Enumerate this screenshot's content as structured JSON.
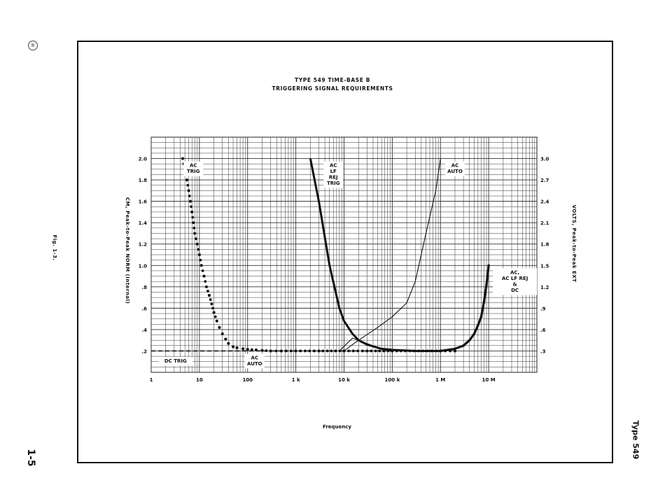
{
  "page": {
    "fig_label": "Fig. 1-3.",
    "page_number": "1-5",
    "model_label": "Type 549",
    "badge": "®"
  },
  "chart_data": {
    "type": "line",
    "title": "TYPE 549 TIME-BASE B",
    "subtitle": "TRIGGERING SIGNAL REQUIREMENTS",
    "xlabel": "Frequency",
    "ylabel_left": "CM, Peak-to-Peak NORM (Internal)",
    "ylabel_right": "VOLTS, Peak-to-Peak EXT",
    "x_scale": "log",
    "xlim": [
      1,
      100000000
    ],
    "ylim": [
      0,
      2.2
    ],
    "grid": true,
    "x_ticks": [
      {
        "value": 1,
        "label": "1"
      },
      {
        "value": 10,
        "label": "10"
      },
      {
        "value": 100,
        "label": "100"
      },
      {
        "value": 1000,
        "label": "1 k"
      },
      {
        "value": 10000,
        "label": "10 k"
      },
      {
        "value": 100000,
        "label": "100 k"
      },
      {
        "value": 1000000,
        "label": "1 M"
      },
      {
        "value": 10000000,
        "label": "10 M"
      }
    ],
    "y_ticks_left": [
      {
        "value": 0.2,
        "label": ".2"
      },
      {
        "value": 0.4,
        "label": ".4"
      },
      {
        "value": 0.6,
        "label": ".6"
      },
      {
        "value": 0.8,
        "label": ".8"
      },
      {
        "value": 1.0,
        "label": "1.0"
      },
      {
        "value": 1.2,
        "label": "1.2"
      },
      {
        "value": 1.4,
        "label": "1.4"
      },
      {
        "value": 1.6,
        "label": "1.6"
      },
      {
        "value": 1.8,
        "label": "1.8"
      },
      {
        "value": 2.0,
        "label": "2.0"
      }
    ],
    "y_ticks_right": [
      {
        "value": 0.2,
        "label": ".3"
      },
      {
        "value": 0.4,
        "label": ".6"
      },
      {
        "value": 0.6,
        "label": ".9"
      },
      {
        "value": 0.8,
        "label": "1.2"
      },
      {
        "value": 1.0,
        "label": "1.5"
      },
      {
        "value": 1.2,
        "label": "1.8"
      },
      {
        "value": 1.4,
        "label": "2.1"
      },
      {
        "value": 1.6,
        "label": "2.4"
      },
      {
        "value": 1.8,
        "label": "2.7"
      },
      {
        "value": 2.0,
        "label": "3.0"
      }
    ],
    "series": [
      {
        "style": "dotted",
        "x": [
          4.5,
          5,
          5.5,
          6,
          6.5,
          7,
          7.5,
          8,
          9,
          10,
          11,
          12.5,
          14,
          16,
          18,
          20,
          23,
          26,
          30,
          35,
          40,
          50,
          60,
          80,
          100,
          150,
          200,
          300,
          500,
          1000,
          3000,
          10000,
          30000,
          100000,
          1000000,
          2000000
        ],
        "y": [
          2.0,
          1.9,
          1.8,
          1.7,
          1.6,
          1.5,
          1.4,
          1.3,
          1.2,
          1.1,
          1.0,
          0.9,
          0.8,
          0.72,
          0.64,
          0.56,
          0.48,
          0.42,
          0.36,
          0.31,
          0.27,
          0.24,
          0.23,
          0.22,
          0.215,
          0.21,
          0.205,
          0.2,
          0.2,
          0.2,
          0.2,
          0.2,
          0.2,
          0.2,
          0.2,
          0.2
        ]
      },
      {
        "style": "dashed",
        "x": [
          1,
          10,
          100,
          1000,
          10000,
          100000,
          1000000
        ],
        "y": [
          0.2,
          0.2,
          0.2,
          0.2,
          0.2,
          0.2,
          0.2
        ]
      },
      {
        "style": "thick",
        "x": [
          2000,
          3000,
          5000,
          8000,
          10000,
          15000,
          20000,
          30000,
          60000,
          100000,
          300000,
          1000000
        ],
        "y": [
          2.0,
          1.6,
          1.0,
          0.6,
          0.48,
          0.36,
          0.3,
          0.26,
          0.22,
          0.21,
          0.2,
          0.2
        ]
      },
      {
        "style": "thin",
        "x": [
          10000,
          15000,
          20000,
          50000,
          100000,
          200000,
          300000,
          500000,
          800000,
          1000000
        ],
        "y": [
          0.2,
          0.26,
          0.3,
          0.42,
          0.52,
          0.65,
          0.85,
          1.3,
          1.7,
          2.0
        ]
      },
      {
        "style": "thin",
        "x": [
          8000,
          15000,
          20000,
          30000,
          50000,
          100000
        ],
        "y": [
          0.2,
          0.32,
          0.3,
          0.27,
          0.23,
          0.21
        ]
      },
      {
        "style": "thick-dotted",
        "x": [
          1000000,
          2000000,
          3000000,
          4000000,
          5000000,
          6000000,
          7000000,
          8000000,
          9000000,
          10000000
        ],
        "y": [
          0.2,
          0.22,
          0.25,
          0.3,
          0.36,
          0.44,
          0.52,
          0.66,
          0.82,
          1.0
        ]
      }
    ],
    "annotations": [
      {
        "lines": [
          "AC",
          "TRIG"
        ],
        "x": 7.5,
        "y": 1.96
      },
      {
        "lines": [
          "AC",
          "LF",
          "REJ",
          "TRIG"
        ],
        "x": 6000,
        "y": 1.96
      },
      {
        "lines": [
          "AC",
          "AUTO"
        ],
        "x": 2000000,
        "y": 1.96
      },
      {
        "lines": [
          "AC,",
          "AC  LF  REJ",
          "&",
          "DC"
        ],
        "x": 35000000,
        "y": 0.96
      },
      {
        "lines": [
          "DC  TRIG"
        ],
        "x": 3.2,
        "y": 0.13
      },
      {
        "lines": [
          "AC",
          "AUTO"
        ],
        "x": 140,
        "y": 0.16
      }
    ]
  }
}
